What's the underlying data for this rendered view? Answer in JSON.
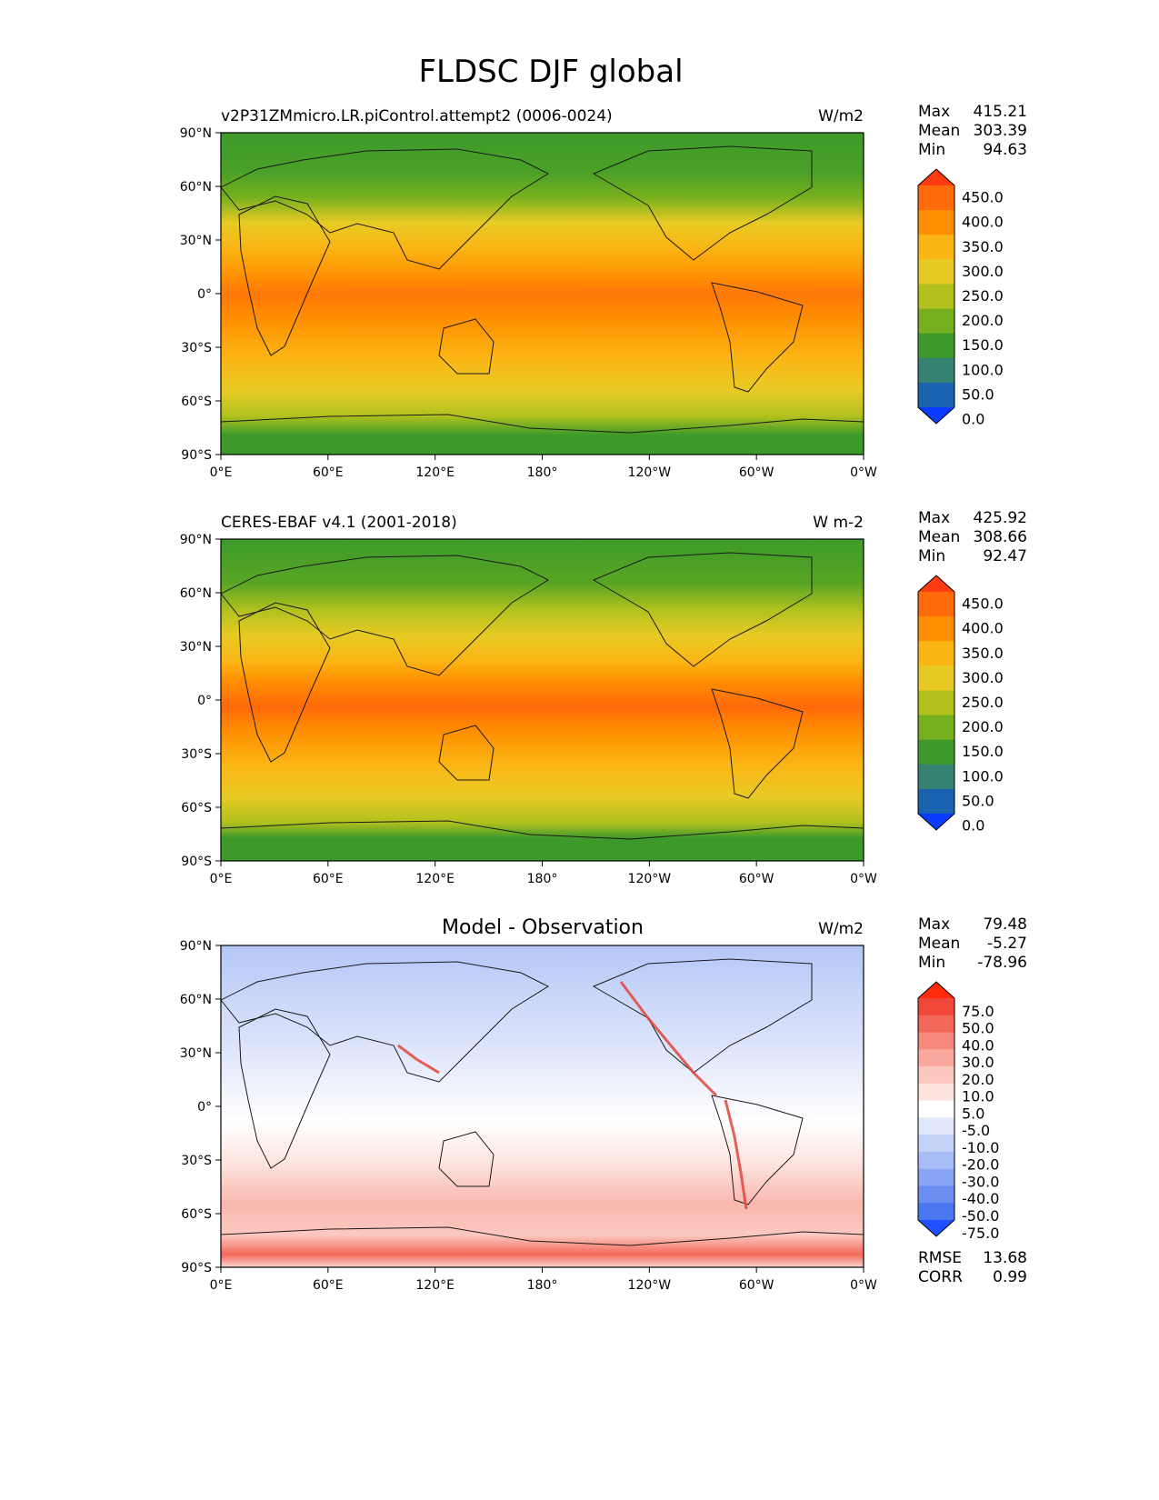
{
  "figure": {
    "title": "FLDSC DJF global",
    "lat_ticks": [
      "90°N",
      "60°N",
      "30°N",
      "0°",
      "30°S",
      "60°S",
      "90°S"
    ],
    "lon_ticks": [
      "0°E",
      "60°E",
      "120°E",
      "180°",
      "120°W",
      "60°W",
      "0°W"
    ]
  },
  "panels": [
    {
      "id": "model",
      "left_title": "v2P31ZMmicro.LR.piControl.attempt2 (0006-0024)",
      "center_title": "",
      "units": "W/m2",
      "stats": [
        {
          "label": "Max",
          "value": "415.21"
        },
        {
          "label": "Mean",
          "value": "303.39"
        },
        {
          "label": "Min",
          "value": "94.63"
        }
      ],
      "colorbar_ticks": [
        "450.0",
        "400.0",
        "350.0",
        "300.0",
        "250.0",
        "200.0",
        "150.0",
        "100.0",
        "50.0",
        "0.0"
      ],
      "colorbar_colors": [
        "#ff3b12",
        "#ff6a0a",
        "#ff8f00",
        "#fbb515",
        "#e8ca24",
        "#b2c11e",
        "#76b01e",
        "#3d9a2a",
        "#358272",
        "#1a62b0",
        "#0a3cff"
      ]
    },
    {
      "id": "obs",
      "left_title": "CERES-EBAF v4.1 (2001-2018)",
      "center_title": "",
      "units": "W m-2",
      "stats": [
        {
          "label": "Max",
          "value": "425.92"
        },
        {
          "label": "Mean",
          "value": "308.66"
        },
        {
          "label": "Min",
          "value": "92.47"
        }
      ],
      "colorbar_ticks": [
        "450.0",
        "400.0",
        "350.0",
        "300.0",
        "250.0",
        "200.0",
        "150.0",
        "100.0",
        "50.0",
        "0.0"
      ],
      "colorbar_colors": [
        "#ff3b12",
        "#ff6a0a",
        "#ff8f00",
        "#fbb515",
        "#e8ca24",
        "#b2c11e",
        "#76b01e",
        "#3d9a2a",
        "#358272",
        "#1a62b0",
        "#0a3cff"
      ]
    },
    {
      "id": "diff",
      "left_title": "",
      "center_title": "Model - Observation",
      "units": "W/m2",
      "stats": [
        {
          "label": "Max",
          "value": "79.48"
        },
        {
          "label": "Mean",
          "value": "-5.27"
        },
        {
          "label": "Min",
          "value": "-78.96"
        }
      ],
      "colorbar_ticks": [
        "75.0",
        "50.0",
        "40.0",
        "30.0",
        "20.0",
        "10.0",
        "5.0",
        "-5.0",
        "-10.0",
        "-20.0",
        "-30.0",
        "-40.0",
        "-50.0",
        "-75.0"
      ],
      "colorbar_colors": [
        "#ff2a0a",
        "#f2483c",
        "#f4685a",
        "#f7897c",
        "#f9a99e",
        "#fbc8c0",
        "#fde3de",
        "#ffffff",
        "#e2e8fb",
        "#c5d2f8",
        "#a8bcf6",
        "#8aa5f3",
        "#6c8ef1",
        "#4a76ef",
        "#1e50ff"
      ],
      "metrics": [
        {
          "label": "RMSE",
          "value": "13.68"
        },
        {
          "label": "CORR",
          "value": "0.99"
        }
      ]
    }
  ]
}
